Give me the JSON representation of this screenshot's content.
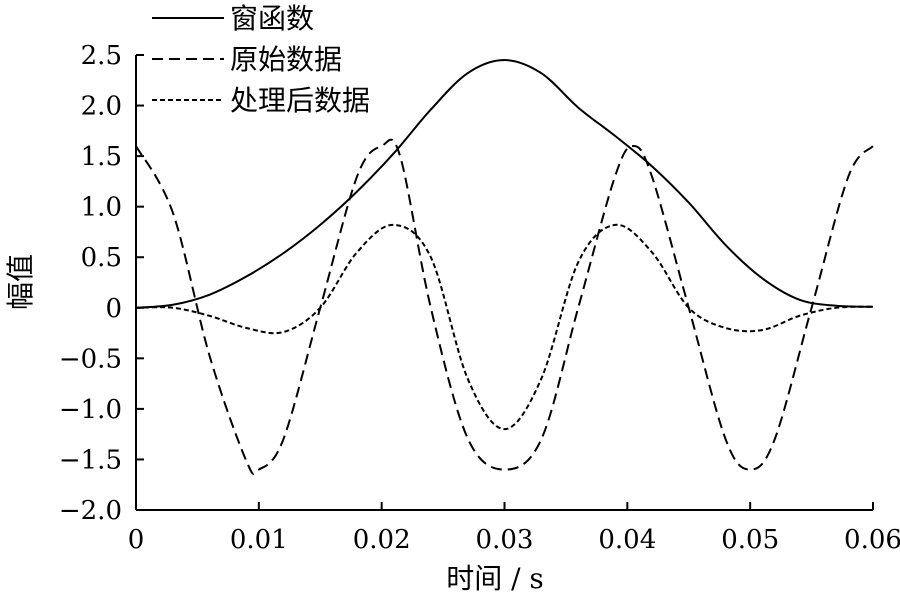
{
  "chart_data": {
    "type": "line",
    "title": "",
    "xlabel": "时间 / s",
    "ylabel": "幅值",
    "xlim": [
      0,
      0.06
    ],
    "ylim": [
      -2.0,
      2.5
    ],
    "xticks": [
      {
        "value": 0,
        "label": "0"
      },
      {
        "value": 0.01,
        "label": "0.01"
      },
      {
        "value": 0.02,
        "label": "0.02"
      },
      {
        "value": 0.03,
        "label": "0.03"
      },
      {
        "value": 0.04,
        "label": "0.04"
      },
      {
        "value": 0.05,
        "label": "0.05"
      },
      {
        "value": 0.06,
        "label": "0.06"
      }
    ],
    "yticks": [
      {
        "value": 2.5,
        "label": "2.5"
      },
      {
        "value": 2.0,
        "label": "2.0"
      },
      {
        "value": 1.5,
        "label": "1.5"
      },
      {
        "value": 1.0,
        "label": "1.0"
      },
      {
        "value": 0.5,
        "label": "0.5"
      },
      {
        "value": 0,
        "label": "0"
      },
      {
        "value": -0.5,
        "label": "−0.5"
      },
      {
        "value": -1.0,
        "label": "−1.0"
      },
      {
        "value": -1.5,
        "label": "−1.5"
      },
      {
        "value": -2.0,
        "label": "−2.0"
      }
    ],
    "grid": false,
    "legend_position": "top-left",
    "series": [
      {
        "name": "窗函数",
        "style": "solid",
        "x": [
          0,
          0.003,
          0.006,
          0.009,
          0.012,
          0.015,
          0.018,
          0.021,
          0.024,
          0.027,
          0.03,
          0.033,
          0.036,
          0.039,
          0.042,
          0.045,
          0.048,
          0.051,
          0.054,
          0.057,
          0.06
        ],
        "y": [
          0.0,
          0.03,
          0.13,
          0.31,
          0.54,
          0.82,
          1.15,
          1.53,
          1.96,
          2.32,
          2.45,
          2.32,
          1.98,
          1.7,
          1.4,
          1.04,
          0.62,
          0.29,
          0.08,
          0.02,
          0.01
        ]
      },
      {
        "name": "原始数据",
        "style": "dashed",
        "x": [
          0,
          0.003,
          0.006,
          0.009,
          0.01,
          0.012,
          0.015,
          0.018,
          0.02,
          0.0215,
          0.024,
          0.027,
          0.03,
          0.033,
          0.036,
          0.039,
          0.0405,
          0.042,
          0.045,
          0.048,
          0.05,
          0.052,
          0.055,
          0.058,
          0.06
        ],
        "y": [
          1.6,
          0.94,
          -0.48,
          -1.52,
          -1.6,
          -1.3,
          0.0,
          1.3,
          1.6,
          1.5,
          0.0,
          -1.29,
          -1.6,
          -1.3,
          0.0,
          1.3,
          1.6,
          1.3,
          0.0,
          -1.3,
          -1.6,
          -1.3,
          0.0,
          1.3,
          1.6
        ]
      },
      {
        "name": "处理后数据",
        "style": "dotted",
        "x": [
          0,
          0.003,
          0.006,
          0.009,
          0.012,
          0.015,
          0.018,
          0.021,
          0.024,
          0.027,
          0.03,
          0.033,
          0.036,
          0.039,
          0.042,
          0.045,
          0.048,
          0.051,
          0.054,
          0.057,
          0.06
        ],
        "y": [
          0.0,
          0.0,
          -0.08,
          -0.2,
          -0.24,
          0.0,
          0.55,
          0.82,
          0.5,
          -0.7,
          -1.2,
          -0.7,
          0.45,
          0.82,
          0.55,
          0.0,
          -0.2,
          -0.22,
          -0.08,
          0.0,
          0.01
        ]
      }
    ]
  }
}
